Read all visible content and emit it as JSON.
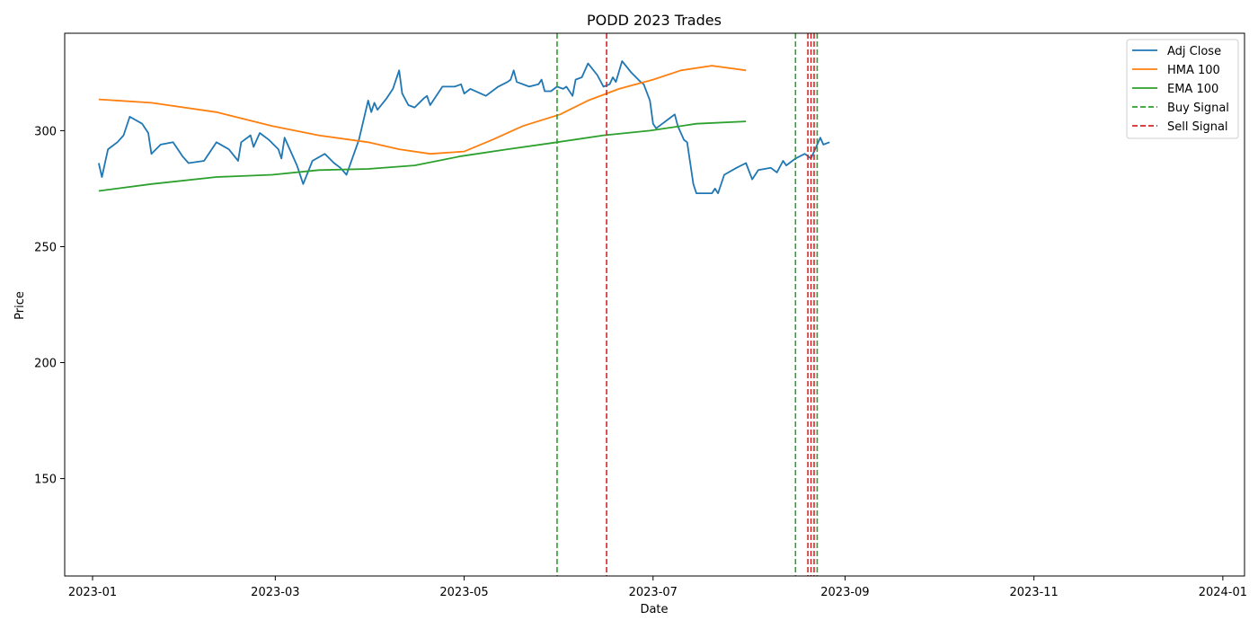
{
  "chart_data": {
    "type": "line",
    "title": "PODD 2023 Trades",
    "xlabel": "Date",
    "ylabel": "Price",
    "xlim": [
      "2022-12-23",
      "2024-01-08"
    ],
    "ylim": [
      108,
      342
    ],
    "x_ticks": [
      "2023-01-01",
      "2023-03-01",
      "2023-05-01",
      "2023-07-01",
      "2023-09-01",
      "2023-11-01",
      "2024-01-01"
    ],
    "x_tick_labels": [
      "2023-01",
      "2023-03",
      "2023-05",
      "2023-07",
      "2023-09",
      "2023-11",
      "2024-01"
    ],
    "y_ticks": [
      150,
      200,
      250,
      300
    ],
    "y_tick_labels": [
      "150",
      "200",
      "250",
      "300"
    ],
    "grid": false,
    "legend_position": "top-right",
    "colors": {
      "adj_close": "#1f77b4",
      "hma": "#ff7f0e",
      "ema": "#2ca02c",
      "buy": "#2ca02c",
      "sell": "#d62728"
    },
    "series": [
      {
        "name": "Adj Close",
        "style": "solid",
        "color": "#1f77b4",
        "points": [
          [
            "2023-01-03",
            286
          ],
          [
            "2023-01-04",
            280
          ],
          [
            "2023-01-06",
            292
          ],
          [
            "2023-01-09",
            295
          ],
          [
            "2023-01-11",
            298
          ],
          [
            "2023-01-13",
            306
          ],
          [
            "2023-01-17",
            303
          ],
          [
            "2023-01-19",
            299
          ],
          [
            "2023-01-20",
            290
          ],
          [
            "2023-01-23",
            294
          ],
          [
            "2023-01-27",
            295
          ],
          [
            "2023-01-30",
            289
          ],
          [
            "2023-02-01",
            286
          ],
          [
            "2023-02-06",
            287
          ],
          [
            "2023-02-10",
            295
          ],
          [
            "2023-02-14",
            292
          ],
          [
            "2023-02-17",
            287
          ],
          [
            "2023-02-18",
            295
          ],
          [
            "2023-02-21",
            298
          ],
          [
            "2023-02-22",
            293
          ],
          [
            "2023-02-24",
            299
          ],
          [
            "2023-02-27",
            296
          ],
          [
            "2023-03-02",
            292
          ],
          [
            "2023-03-03",
            288
          ],
          [
            "2023-03-04",
            297
          ],
          [
            "2023-03-08",
            285
          ],
          [
            "2023-03-10",
            277
          ],
          [
            "2023-03-13",
            287
          ],
          [
            "2023-03-17",
            290
          ],
          [
            "2023-03-20",
            286
          ],
          [
            "2023-03-22",
            284
          ],
          [
            "2023-03-24",
            281
          ],
          [
            "2023-03-28",
            296
          ],
          [
            "2023-03-31",
            313
          ],
          [
            "2023-04-01",
            308
          ],
          [
            "2023-04-02",
            312
          ],
          [
            "2023-04-03",
            309
          ],
          [
            "2023-04-06",
            314
          ],
          [
            "2023-04-08",
            318
          ],
          [
            "2023-04-10",
            326
          ],
          [
            "2023-04-11",
            316
          ],
          [
            "2023-04-13",
            311
          ],
          [
            "2023-04-15",
            310
          ],
          [
            "2023-04-18",
            314
          ],
          [
            "2023-04-19",
            315
          ],
          [
            "2023-04-20",
            311
          ],
          [
            "2023-04-21",
            313
          ],
          [
            "2023-04-24",
            319
          ],
          [
            "2023-04-28",
            319
          ],
          [
            "2023-04-30",
            320
          ],
          [
            "2023-05-01",
            316
          ],
          [
            "2023-05-03",
            318
          ],
          [
            "2023-05-08",
            315
          ],
          [
            "2023-05-12",
            319
          ],
          [
            "2023-05-15",
            321
          ],
          [
            "2023-05-16",
            322
          ],
          [
            "2023-05-17",
            326
          ],
          [
            "2023-05-18",
            321
          ],
          [
            "2023-05-22",
            319
          ],
          [
            "2023-05-25",
            320
          ],
          [
            "2023-05-26",
            322
          ],
          [
            "2023-05-27",
            317
          ],
          [
            "2023-05-29",
            317
          ],
          [
            "2023-05-31",
            319
          ],
          [
            "2023-06-02",
            318
          ],
          [
            "2023-06-03",
            319
          ],
          [
            "2023-06-05",
            315
          ],
          [
            "2023-06-06",
            322
          ],
          [
            "2023-06-08",
            323
          ],
          [
            "2023-06-10",
            329
          ],
          [
            "2023-06-13",
            324
          ],
          [
            "2023-06-15",
            319
          ],
          [
            "2023-06-17",
            320
          ],
          [
            "2023-06-18",
            323
          ],
          [
            "2023-06-19",
            321
          ],
          [
            "2023-06-21",
            330
          ],
          [
            "2023-06-24",
            325
          ],
          [
            "2023-06-27",
            321
          ],
          [
            "2023-06-28",
            320
          ],
          [
            "2023-06-30",
            313
          ],
          [
            "2023-07-01",
            303
          ],
          [
            "2023-07-02",
            301
          ],
          [
            "2023-07-04",
            303
          ],
          [
            "2023-07-06",
            305
          ],
          [
            "2023-07-08",
            307
          ],
          [
            "2023-07-09",
            302
          ],
          [
            "2023-07-11",
            296
          ],
          [
            "2023-07-12",
            295
          ],
          [
            "2023-07-14",
            277
          ],
          [
            "2023-07-15",
            273
          ],
          [
            "2023-07-20",
            273
          ],
          [
            "2023-07-21",
            275
          ],
          [
            "2023-07-22",
            273
          ],
          [
            "2023-07-24",
            281
          ],
          [
            "2023-07-28",
            284
          ],
          [
            "2023-07-31",
            286
          ],
          [
            "2023-08-02",
            279
          ],
          [
            "2023-08-04",
            283
          ],
          [
            "2023-08-08",
            284
          ],
          [
            "2023-08-10",
            282
          ],
          [
            "2023-08-12",
            287
          ],
          [
            "2023-08-13",
            285
          ],
          [
            "2023-08-16",
            288
          ],
          [
            "2023-08-19",
            290
          ],
          [
            "2023-08-21",
            288
          ],
          [
            "2023-08-24",
            297
          ],
          [
            "2023-08-25",
            294
          ],
          [
            "2023-08-27",
            295
          ]
        ]
      },
      {
        "name": "HMA 100",
        "style": "solid",
        "color": "#ff7f0e",
        "points": [
          [
            "2023-01-03",
            313.5
          ],
          [
            "2023-01-20",
            312
          ],
          [
            "2023-02-10",
            308
          ],
          [
            "2023-02-28",
            302
          ],
          [
            "2023-03-15",
            298
          ],
          [
            "2023-03-31",
            295
          ],
          [
            "2023-04-10",
            292
          ],
          [
            "2023-04-20",
            290
          ],
          [
            "2023-05-01",
            291
          ],
          [
            "2023-05-10",
            296
          ],
          [
            "2023-05-20",
            302
          ],
          [
            "2023-06-01",
            307
          ],
          [
            "2023-06-10",
            313
          ],
          [
            "2023-06-20",
            318
          ],
          [
            "2023-07-01",
            322
          ],
          [
            "2023-07-10",
            326
          ],
          [
            "2023-07-20",
            328
          ],
          [
            "2023-07-31",
            326
          ]
        ]
      },
      {
        "name": "EMA 100",
        "style": "solid",
        "color": "#2ca02c",
        "points": [
          [
            "2023-01-03",
            274
          ],
          [
            "2023-01-20",
            277
          ],
          [
            "2023-02-10",
            280
          ],
          [
            "2023-02-28",
            281
          ],
          [
            "2023-03-15",
            283
          ],
          [
            "2023-03-31",
            283.5
          ],
          [
            "2023-04-15",
            285
          ],
          [
            "2023-04-30",
            289
          ],
          [
            "2023-05-15",
            292
          ],
          [
            "2023-05-31",
            295
          ],
          [
            "2023-06-15",
            298
          ],
          [
            "2023-06-30",
            300
          ],
          [
            "2023-07-15",
            303
          ],
          [
            "2023-07-31",
            304
          ]
        ]
      }
    ],
    "signals": {
      "buy": [
        "2023-05-31",
        "2023-08-16",
        "2023-08-23"
      ],
      "sell": [
        "2023-06-16",
        "2023-08-20",
        "2023-08-21",
        "2023-08-22"
      ]
    },
    "legend": [
      {
        "label": "Adj Close",
        "style": "solid",
        "color": "#1f77b4"
      },
      {
        "label": "HMA 100",
        "style": "solid",
        "color": "#ff7f0e"
      },
      {
        "label": "EMA 100",
        "style": "solid",
        "color": "#2ca02c"
      },
      {
        "label": "Buy Signal",
        "style": "dashed",
        "color": "#2ca02c"
      },
      {
        "label": "Sell Signal",
        "style": "dashed",
        "color": "#d62728"
      }
    ]
  }
}
